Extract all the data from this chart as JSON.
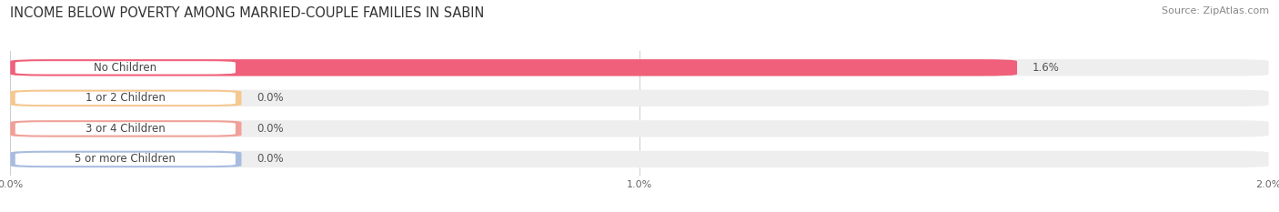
{
  "title": "INCOME BELOW POVERTY AMONG MARRIED-COUPLE FAMILIES IN SABIN",
  "source": "Source: ZipAtlas.com",
  "categories": [
    "No Children",
    "1 or 2 Children",
    "3 or 4 Children",
    "5 or more Children"
  ],
  "values": [
    1.6,
    0.0,
    0.0,
    0.0
  ],
  "bar_colors": [
    "#f0607a",
    "#f5c890",
    "#f0a098",
    "#a8bce0"
  ],
  "background_color": "#ffffff",
  "bar_bg_color": "#eeeeee",
  "xlim": [
    0,
    2.0
  ],
  "xticks": [
    0.0,
    1.0,
    2.0
  ],
  "xtick_labels": [
    "0.0%",
    "1.0%",
    "2.0%"
  ],
  "title_fontsize": 10.5,
  "source_fontsize": 8,
  "category_fontsize": 8.5,
  "value_label_fontsize": 8.5
}
